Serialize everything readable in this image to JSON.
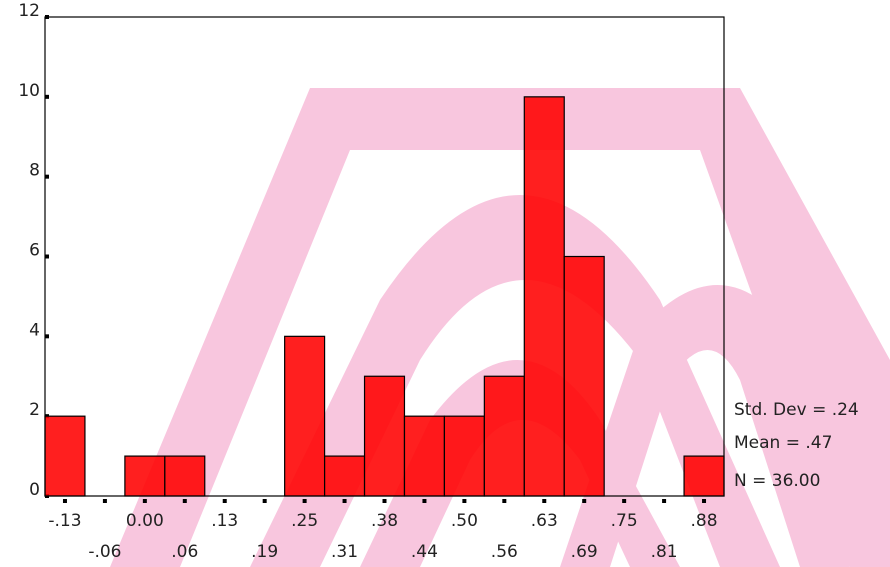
{
  "chart_data": {
    "type": "bar",
    "categories": [
      "-.13",
      "-.06",
      "0.00",
      ".06",
      ".13",
      ".19",
      ".25",
      ".31",
      ".38",
      ".44",
      ".50",
      ".56",
      ".63",
      ".69",
      ".75",
      ".81",
      ".88"
    ],
    "values": [
      2,
      0,
      1,
      1,
      0,
      0,
      4,
      1,
      3,
      2,
      2,
      3,
      10,
      6,
      0,
      0,
      1
    ],
    "color": "#ff0000",
    "ylim": [
      0,
      12
    ],
    "yticks": [
      0,
      2,
      4,
      6,
      8,
      10,
      12
    ],
    "annotations": [
      "Std. Dev = .24",
      "Mean = .47",
      "N = 36.00"
    ]
  }
}
